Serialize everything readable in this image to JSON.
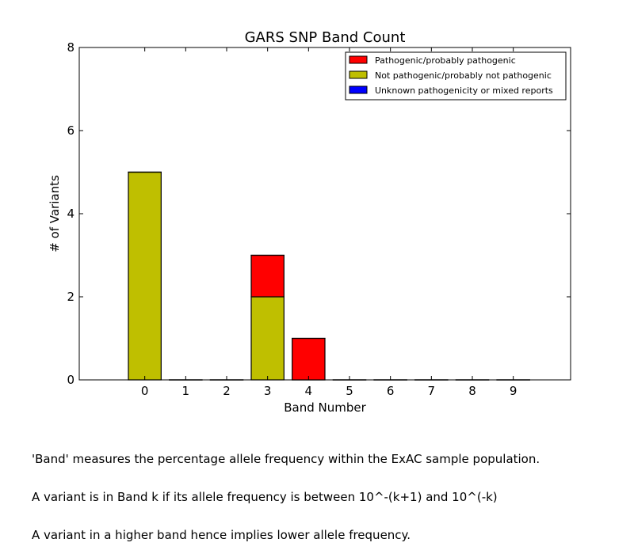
{
  "chart_data": {
    "type": "bar",
    "title": "GARS SNP Band Count",
    "xlabel": "Band Number",
    "ylabel": "# of Variants",
    "categories": [
      "0",
      "1",
      "2",
      "3",
      "4",
      "5",
      "6",
      "7",
      "8",
      "9"
    ],
    "ylim": [
      0,
      8
    ],
    "yticks": [
      "0",
      "2",
      "4",
      "6",
      "8"
    ],
    "stacked": true,
    "series": [
      {
        "name": "Not pathogenic/probably not pathogenic",
        "color": "#bfbf00",
        "values": [
          5,
          0,
          0,
          2,
          0,
          0,
          0,
          0,
          0,
          0
        ]
      },
      {
        "name": "Pathogenic/probably pathogenic",
        "color": "#ff0000",
        "values": [
          0,
          0,
          0,
          1,
          1,
          0,
          0,
          0,
          0,
          0
        ]
      },
      {
        "name": "Unknown pathogenicity or mixed reports",
        "color": "#0000ff",
        "values": [
          0,
          0,
          0,
          0,
          0,
          0,
          0,
          0,
          0,
          0
        ]
      }
    ],
    "legend": {
      "position": "top-right",
      "entries": [
        {
          "label": "Pathogenic/probably pathogenic",
          "color": "#ff0000"
        },
        {
          "label": "Not pathogenic/probably not pathogenic",
          "color": "#bfbf00"
        },
        {
          "label": "Unknown pathogenicity or mixed reports",
          "color": "#0000ff"
        }
      ]
    },
    "grid": false
  },
  "caption": {
    "lines": [
      "'Band' measures the percentage allele frequency within the ExAC sample population.",
      "A variant is in Band k if its allele frequency is between 10^-(k+1) and 10^(-k)",
      "A variant in a higher band hence implies lower allele frequency."
    ]
  }
}
